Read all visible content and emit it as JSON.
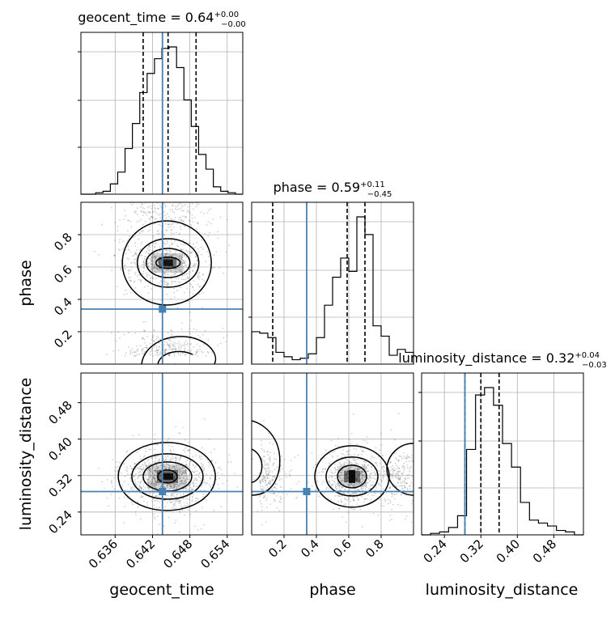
{
  "chart_data": {
    "type": "corner",
    "parameters": [
      {
        "name": "geocent_time",
        "median": "0.64",
        "plus": "+0.00",
        "minus": "−0.00",
        "injection": 0.6436,
        "quantiles": [
          0.6405,
          0.6445,
          0.649
        ],
        "range": [
          0.6305,
          0.6565
        ],
        "ticks": [
          "0.636",
          "0.642",
          "0.648",
          "0.654"
        ]
      },
      {
        "name": "phase",
        "median": "0.59",
        "plus": "+0.11",
        "minus": "−0.45",
        "injection": 0.34,
        "quantiles": [
          0.13,
          0.59,
          0.7
        ],
        "range": [
          0.0,
          1.0
        ],
        "ticks": [
          "0.2",
          "0.4",
          "0.6",
          "0.8"
        ]
      },
      {
        "name": "luminosity_distance",
        "median": "0.32",
        "plus": "+0.04",
        "minus": "−0.03",
        "injection": 0.285,
        "quantiles": [
          0.285,
          0.32,
          0.36
        ],
        "range": [
          0.19,
          0.545
        ],
        "ticks": [
          "0.24",
          "0.32",
          "0.40",
          "0.48"
        ]
      }
    ],
    "histograms": {
      "geocent_time": [
        0,
        0,
        0.01,
        0.02,
        0.07,
        0.15,
        0.31,
        0.48,
        0.69,
        0.82,
        0.92,
        0.99,
        1.0,
        0.86,
        0.64,
        0.46,
        0.27,
        0.17,
        0.05,
        0.02,
        0.01,
        0
      ],
      "phase": [
        0.22,
        0.21,
        0.18,
        0.08,
        0.05,
        0.03,
        0.04,
        0.07,
        0.18,
        0.4,
        0.59,
        0.72,
        0.63,
        1.0,
        0.88,
        0.26,
        0.19,
        0.06,
        0.1,
        0.08
      ],
      "luminosity_distance": [
        0.0,
        0.01,
        0.02,
        0.05,
        0.13,
        0.58,
        0.95,
        1.0,
        0.88,
        0.62,
        0.46,
        0.22,
        0.1,
        0.08,
        0.06,
        0.03,
        0.02,
        0.0
      ]
    },
    "xlabel_geocent": "geocent_time",
    "xlabel_phase": "phase",
    "xlabel_distance": "luminosity_distance",
    "ylabel_phase": "phase",
    "ylabel_distance": "luminosity_distance",
    "grid": true,
    "colors": {
      "truth": "#4682b4",
      "line": "#000000",
      "grid": "#b0b0b0"
    }
  }
}
